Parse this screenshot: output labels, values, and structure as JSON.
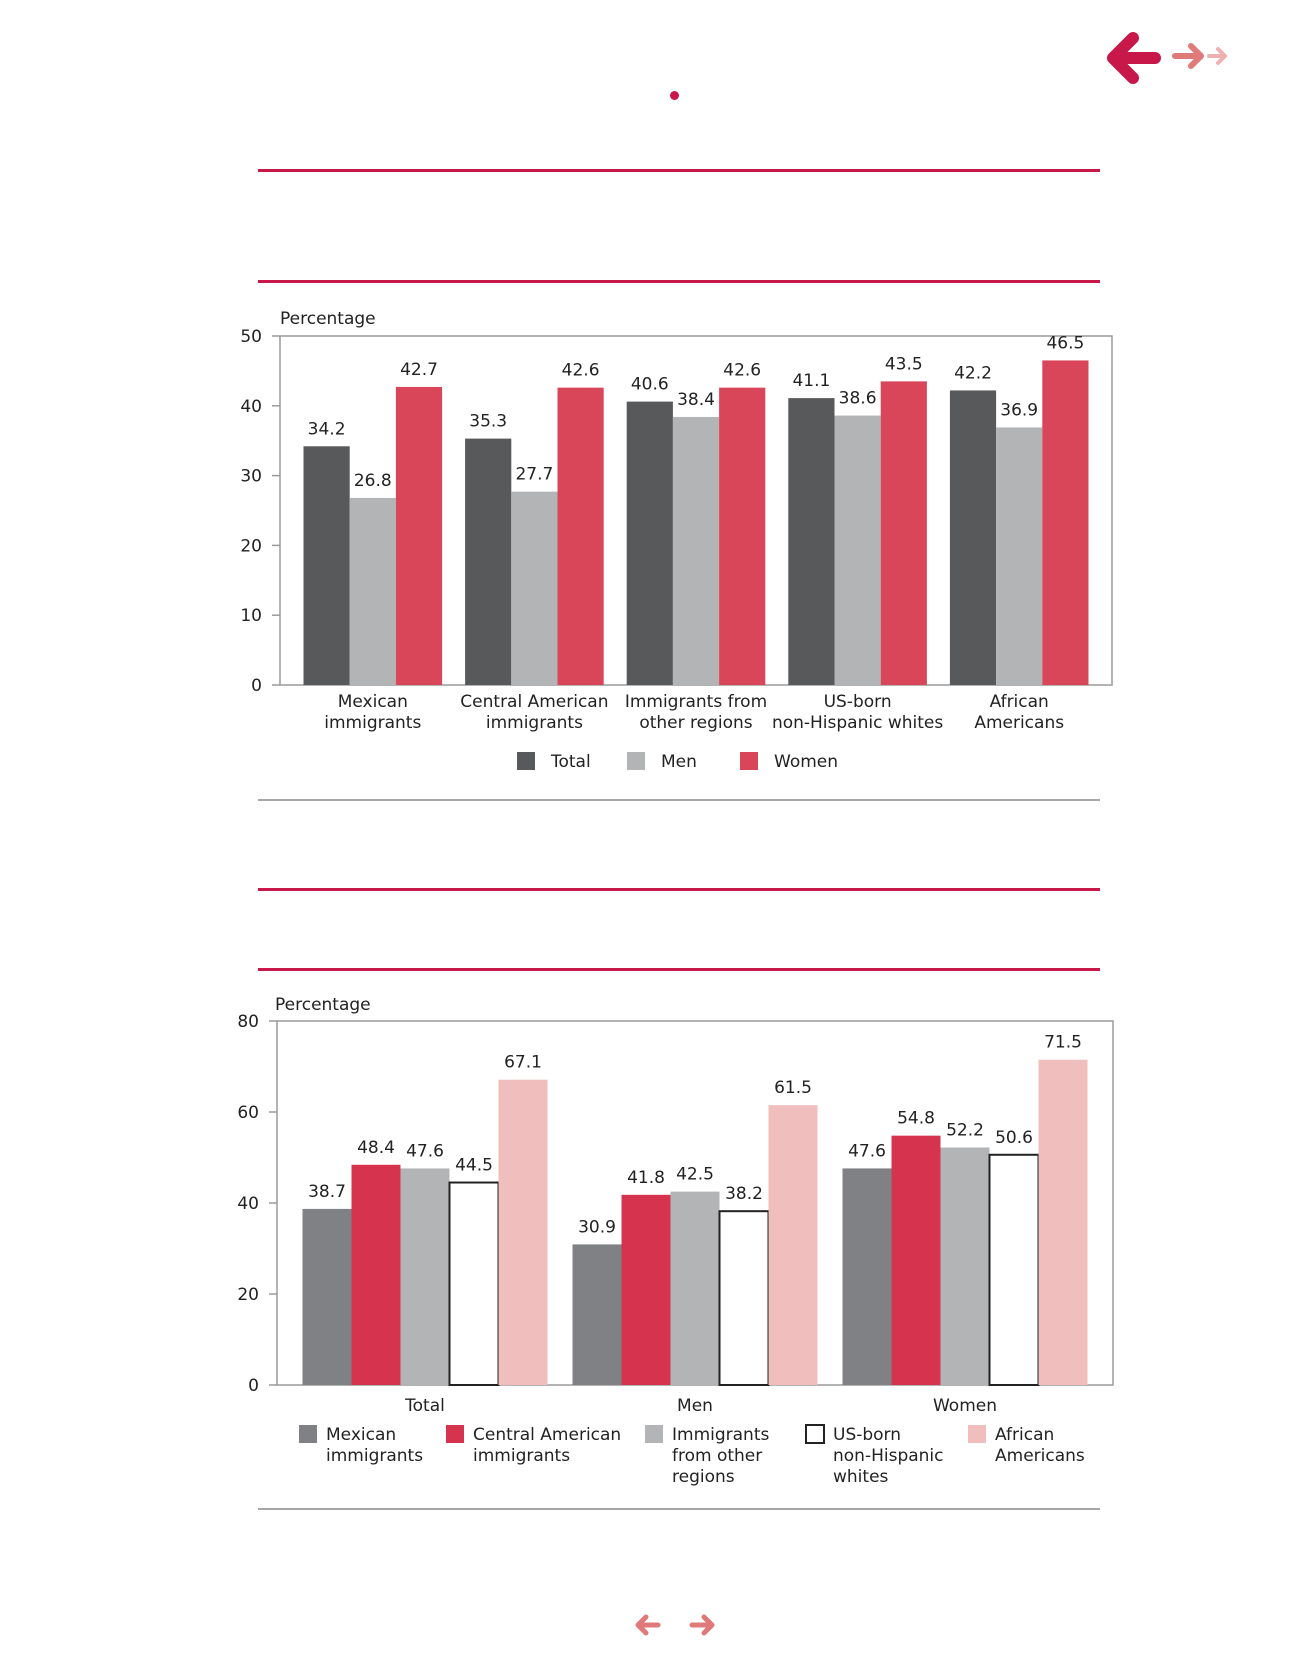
{
  "colors": {
    "accent": "#c8184a",
    "nav_mid": "#e07a7a",
    "nav_light": "#f0b0b0"
  },
  "nav": {
    "back_icon": "arrow-left-icon",
    "forward_icon": "arrow-right-icon"
  },
  "chart_data": [
    {
      "type": "bar",
      "ylabel": "Percentage",
      "ylim": [
        0,
        50
      ],
      "yticks": [
        0,
        10,
        20,
        30,
        40,
        50
      ],
      "categories": [
        [
          "Mexican",
          "immigrants"
        ],
        [
          "Central American",
          "immigrants"
        ],
        [
          "Immigrants from",
          "other regions"
        ],
        [
          "US-born",
          "non-Hispanic whites"
        ],
        [
          "African",
          "Americans"
        ]
      ],
      "series": [
        {
          "name": "Total",
          "color": "#58595b",
          "values": [
            34.2,
            35.3,
            40.6,
            41.1,
            42.2
          ]
        },
        {
          "name": "Men",
          "color": "#b3b4b6",
          "values": [
            26.8,
            27.7,
            38.4,
            38.6,
            36.9
          ]
        },
        {
          "name": "Women",
          "color": "#da4659",
          "values": [
            42.7,
            42.6,
            42.6,
            43.5,
            46.5
          ]
        }
      ],
      "legend": "bottom"
    },
    {
      "type": "bar",
      "ylabel": "Percentage",
      "ylim": [
        0,
        80
      ],
      "yticks": [
        0,
        20,
        40,
        60,
        80
      ],
      "categories": [
        [
          "Total"
        ],
        [
          "Men"
        ],
        [
          "Women"
        ]
      ],
      "series": [
        {
          "name": [
            "Mexican",
            "immigrants"
          ],
          "color": "#808184",
          "values": [
            38.7,
            30.9,
            47.6
          ]
        },
        {
          "name": [
            "Central American",
            "immigrants"
          ],
          "color": "#d6334f",
          "values": [
            48.4,
            41.8,
            54.8
          ]
        },
        {
          "name": [
            "Immigrants",
            "from other",
            "regions"
          ],
          "color": "#b3b4b6",
          "values": [
            47.6,
            42.5,
            52.2
          ]
        },
        {
          "name": [
            "US-born",
            "non-Hispanic",
            "whites"
          ],
          "color": "#ffffff",
          "stroke": "#222222",
          "values": [
            44.5,
            38.2,
            50.6
          ]
        },
        {
          "name": [
            "African",
            "Americans"
          ],
          "color": "#f0bfbd",
          "values": [
            67.1,
            61.5,
            71.5
          ]
        }
      ],
      "legend": "bottom"
    }
  ]
}
